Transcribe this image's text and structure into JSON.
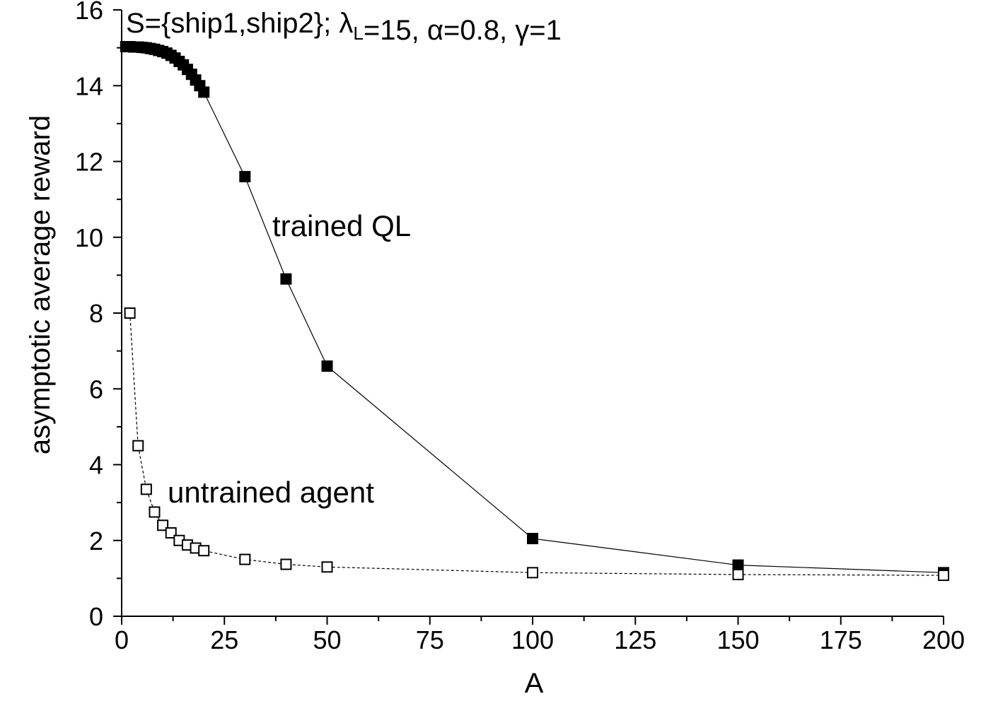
{
  "chart_data": {
    "type": "scatter",
    "title": {
      "parts": [
        "S={ship1,ship2}; ",
        "λ",
        "L",
        "=15, ",
        "α",
        "=0.8, ",
        "γ",
        "=1"
      ]
    },
    "xlabel": "A",
    "ylabel": "asymptotic average reward",
    "xlim": [
      0,
      200
    ],
    "ylim": [
      0,
      16
    ],
    "xticks": [
      0,
      25,
      50,
      75,
      100,
      125,
      150,
      175,
      200
    ],
    "yticks": [
      0,
      2,
      4,
      6,
      8,
      10,
      12,
      14,
      16
    ],
    "xtick_labels": [
      "0",
      "25",
      "50",
      "75",
      "100",
      "125",
      "150",
      "175",
      "200"
    ],
    "ytick_labels": [
      "0",
      "2",
      "4",
      "6",
      "8",
      "10",
      "12",
      "14",
      "16"
    ],
    "grid": false,
    "series": [
      {
        "marker": "filled-square",
        "line": "solid",
        "color": "#000000",
        "x": [
          1,
          2,
          3,
          4,
          5,
          6,
          7,
          8,
          9,
          10,
          11,
          12,
          13,
          14,
          15,
          16,
          17,
          18,
          19,
          20,
          30,
          40,
          50,
          100,
          150,
          200
        ],
        "y": [
          15.03,
          15.03,
          15.02,
          15.02,
          15.01,
          15.0,
          14.98,
          14.96,
          14.93,
          14.9,
          14.86,
          14.8,
          14.73,
          14.64,
          14.55,
          14.43,
          14.3,
          14.15,
          14.0,
          13.83,
          11.6,
          8.9,
          6.6,
          2.05,
          1.35,
          1.15
        ]
      },
      {
        "marker": "open-square",
        "line": "dashed",
        "color": "#000000",
        "x": [
          2,
          4,
          6,
          8,
          10,
          12,
          14,
          16,
          18,
          20,
          30,
          40,
          50,
          100,
          150,
          200
        ],
        "y": [
          8.0,
          4.5,
          3.35,
          2.75,
          2.4,
          2.2,
          2.0,
          1.88,
          1.8,
          1.73,
          1.5,
          1.37,
          1.3,
          1.15,
          1.1,
          1.08
        ]
      }
    ],
    "annotations": [
      {
        "text": "trained QL",
        "series": 0
      },
      {
        "text": "untrained agent",
        "series": 1
      }
    ]
  }
}
